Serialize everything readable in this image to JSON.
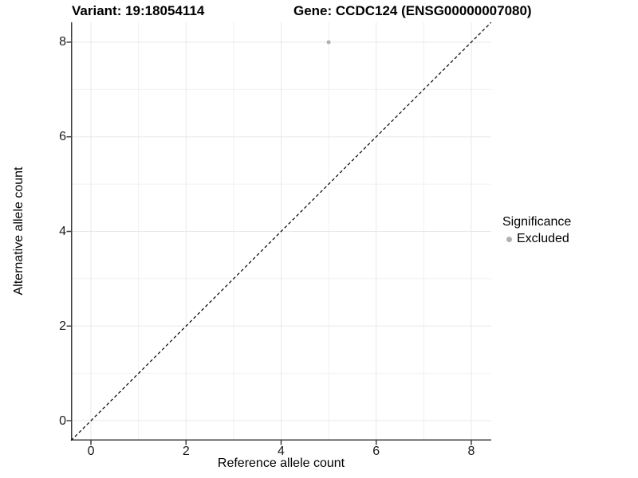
{
  "header": {
    "variant_title": "Variant: 19:18054114",
    "gene_title": "Gene: CCDC124 (ENSG00000007080)"
  },
  "chart_data": {
    "type": "scatter",
    "xlabel": "Reference allele count",
    "ylabel": "Alternative allele count",
    "xlim": [
      -0.42,
      8.42
    ],
    "ylim": [
      -0.42,
      8.42
    ],
    "x_ticks": [
      0,
      2,
      4,
      6,
      8
    ],
    "y_ticks": [
      0,
      2,
      4,
      6,
      8
    ],
    "x_minor_gridlines": [
      1,
      3,
      5,
      7
    ],
    "y_minor_gridlines": [
      1,
      3,
      5,
      7
    ],
    "grid": "major+minor",
    "reference_line": {
      "type": "identity",
      "style": "dashed",
      "from": [
        -0.42,
        -0.42
      ],
      "to": [
        8.42,
        8.42
      ],
      "color": "#000000"
    },
    "series": [
      {
        "name": "Excluded",
        "color": "#b0b0b0",
        "points": [
          [
            5,
            8
          ]
        ]
      }
    ],
    "legend": {
      "title": "Significance",
      "position": "right",
      "items": [
        {
          "label": "Excluded",
          "color": "#b0b0b0"
        }
      ]
    }
  },
  "colors": {
    "background": "#ffffff",
    "grid_major": "#e8e8e8",
    "grid_minor": "#f0f0f0",
    "axis_line": "#3c3c3c",
    "text": "#000000"
  }
}
